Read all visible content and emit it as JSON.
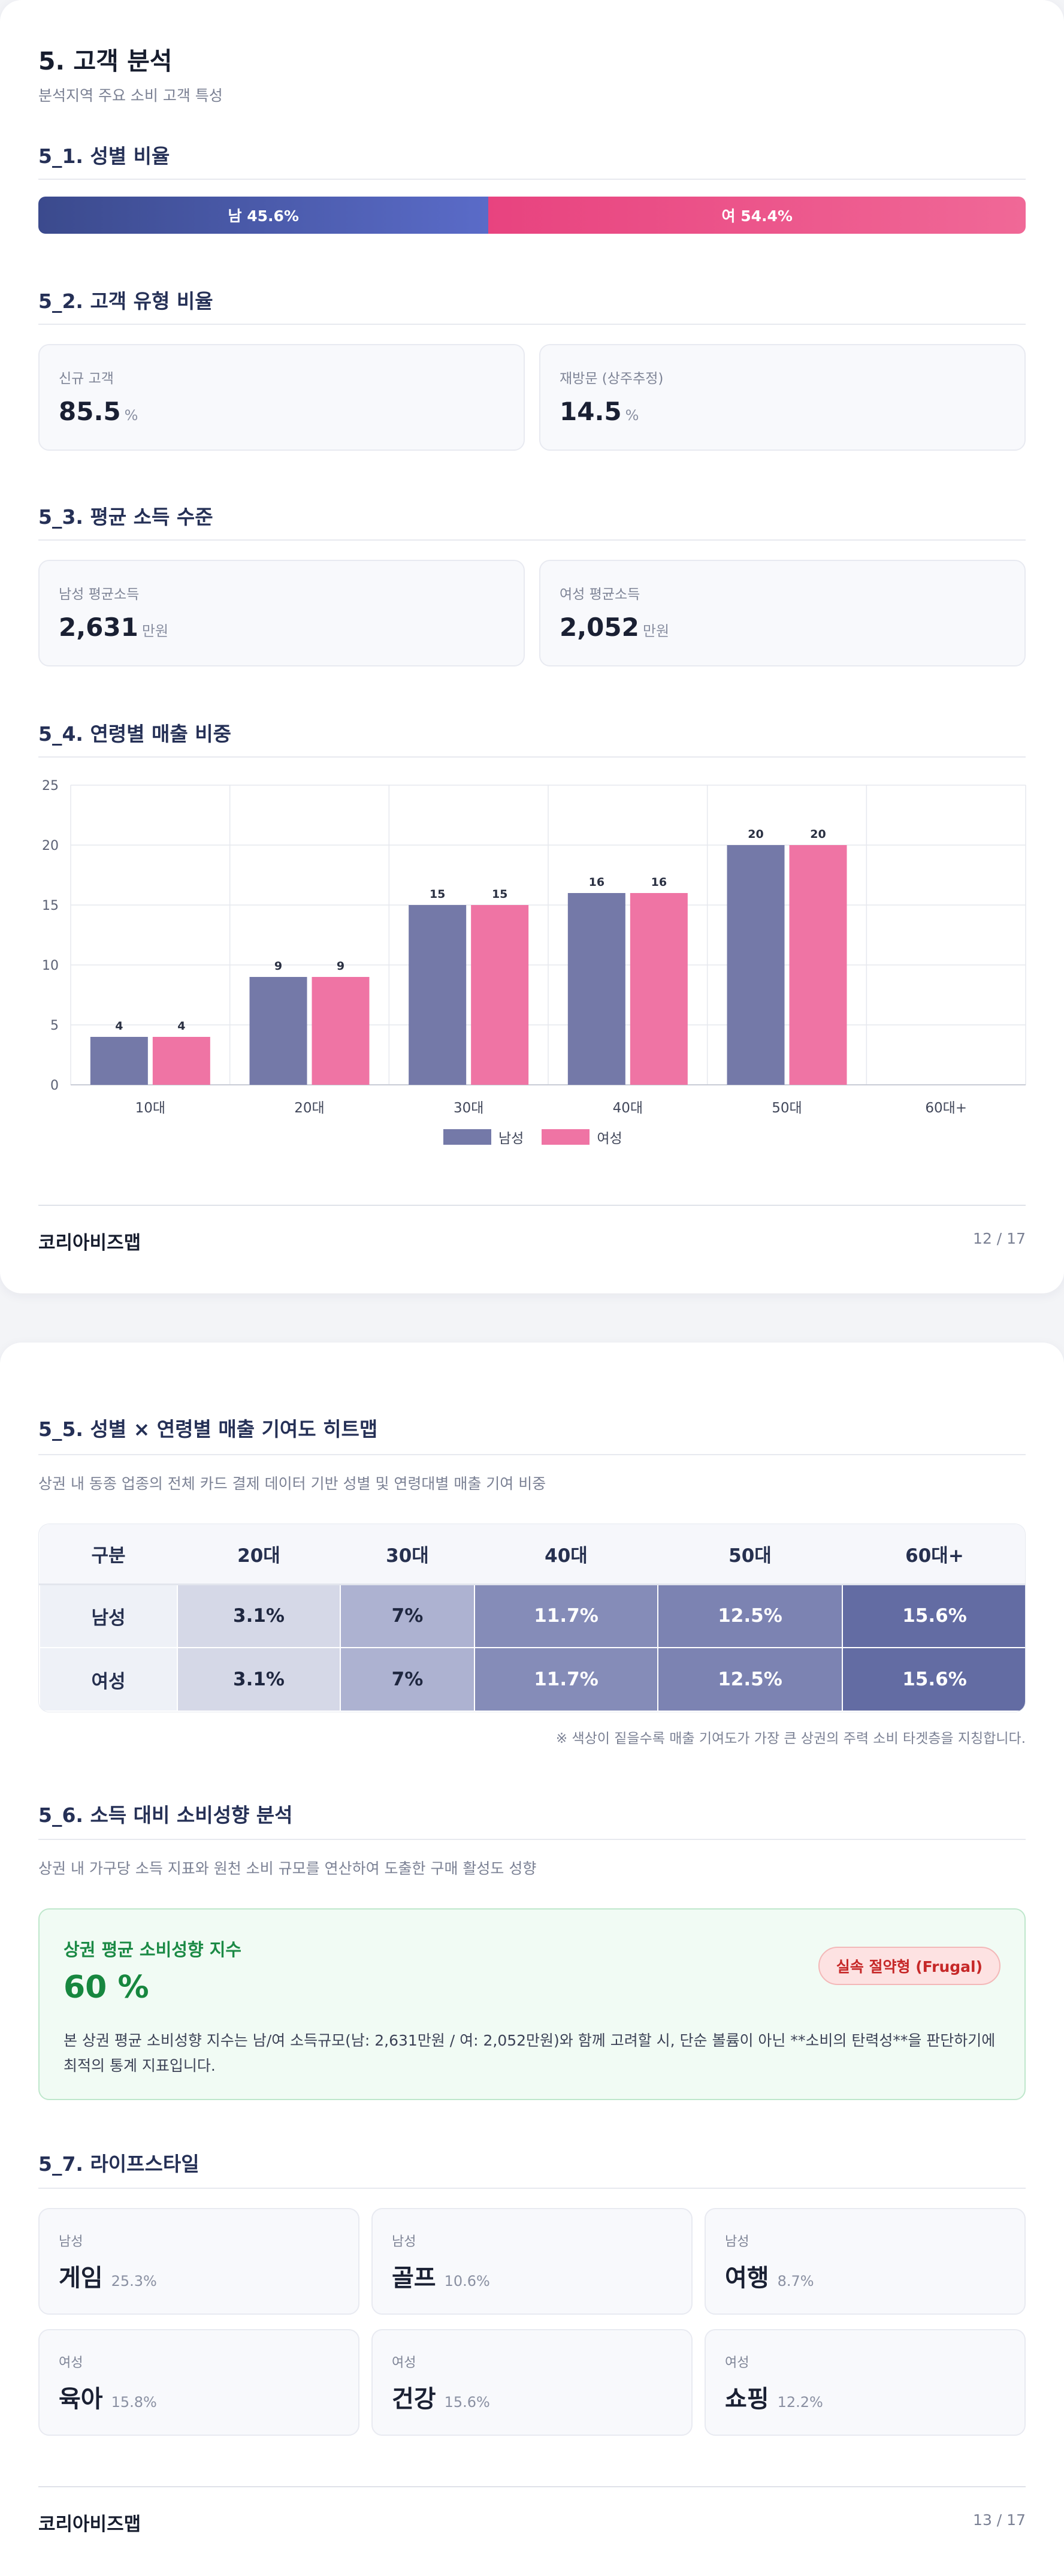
{
  "page1": {
    "title": "5. 고객 분석",
    "subtitle": "분석지역 주요 소비 고객 특성",
    "gender": {
      "title": "5_1. 성별 비율",
      "male_label": "남 45.6%",
      "female_label": "여 54.4%",
      "male_pct": 45.6,
      "female_pct": 54.4
    },
    "customer_type": {
      "title": "5_2. 고객 유형 비율",
      "new_label": "신규 고객",
      "new_value": "85.5",
      "new_unit": "%",
      "return_label": "재방문 (상주추정)",
      "return_value": "14.5",
      "return_unit": "%"
    },
    "income": {
      "title": "5_3. 평균 소득 수준",
      "male_label": "남성 평균소득",
      "male_value": "2,631",
      "male_unit": "만원",
      "female_label": "여성 평균소득",
      "female_value": "2,052",
      "female_unit": "만원"
    },
    "age_sales": {
      "title": "5_4. 연령별 매출 비중"
    },
    "footer": {
      "brand": "코리아비즈맵",
      "page": "12 / 17"
    }
  },
  "chart_data": {
    "type": "bar",
    "categories": [
      "10대",
      "20대",
      "30대",
      "40대",
      "50대",
      "60대+"
    ],
    "series": [
      {
        "name": "남성",
        "values": [
          4,
          9,
          15,
          16,
          20,
          0
        ],
        "color": "#7479a8"
      },
      {
        "name": "여성",
        "values": [
          4,
          9,
          15,
          16,
          20,
          0
        ],
        "color": "#ef74a4"
      }
    ],
    "data_labels": [
      [
        "4",
        "9",
        "15",
        "16",
        "20",
        ""
      ],
      [
        "4",
        "9",
        "15",
        "16",
        "20",
        ""
      ]
    ],
    "ylim": [
      0,
      25
    ],
    "yticks": [
      0,
      5,
      10,
      15,
      20,
      25
    ],
    "grid": true,
    "legend": "bottom-center"
  },
  "page2": {
    "heatmap": {
      "title": "5_5. 성별 × 연령별 매출 기여도 히트맵",
      "desc": "상권 내 동종 업종의 전체 카드 결제 데이터 기반 성별 및 연령대별 매출 기여 비중",
      "headers": [
        "구분",
        "20대",
        "30대",
        "40대",
        "50대",
        "60대+"
      ],
      "rows": [
        {
          "label": "남성",
          "cells": [
            "3.1%",
            "7%",
            "11.7%",
            "12.5%",
            "15.6%"
          ]
        },
        {
          "label": "여성",
          "cells": [
            "3.1%",
            "7%",
            "11.7%",
            "12.5%",
            "15.6%"
          ]
        }
      ],
      "note": "※ 색상이 짙을수록 매출 기여도가 가장 큰 상권의 주력 소비 타겟층을 지칭합니다."
    },
    "consumption": {
      "title": "5_6. 소득 대비 소비성향 분석",
      "desc": "상권 내 가구당 소득 지표와 원천 소비 규모를 연산하여 도출한 구매 활성도 성향",
      "box_title": "상권 평균 소비성향 지수",
      "box_value": "60 %",
      "badge": "실속 절약형 (Frugal)",
      "box_desc": "본 상권 평균 소비성향 지수는 남/여 소득규모(남: 2,631만원 / 여: 2,052만원)와 함께 고려할 시, 단순 볼륨이 아닌 **소비의 탄력성**을 판단하기에 최적의 통계 지표입니다."
    },
    "lifestyle": {
      "title": "5_7. 라이프스타일",
      "items": [
        {
          "gender": "남성",
          "name": "게임",
          "pct": "25.3%"
        },
        {
          "gender": "남성",
          "name": "골프",
          "pct": "10.6%"
        },
        {
          "gender": "남성",
          "name": "여행",
          "pct": "8.7%"
        },
        {
          "gender": "여성",
          "name": "육아",
          "pct": "15.8%"
        },
        {
          "gender": "여성",
          "name": "건강",
          "pct": "15.6%"
        },
        {
          "gender": "여성",
          "name": "쇼핑",
          "pct": "12.2%"
        }
      ]
    },
    "footer": {
      "brand": "코리아비즈맵",
      "page": "13 / 17"
    }
  }
}
